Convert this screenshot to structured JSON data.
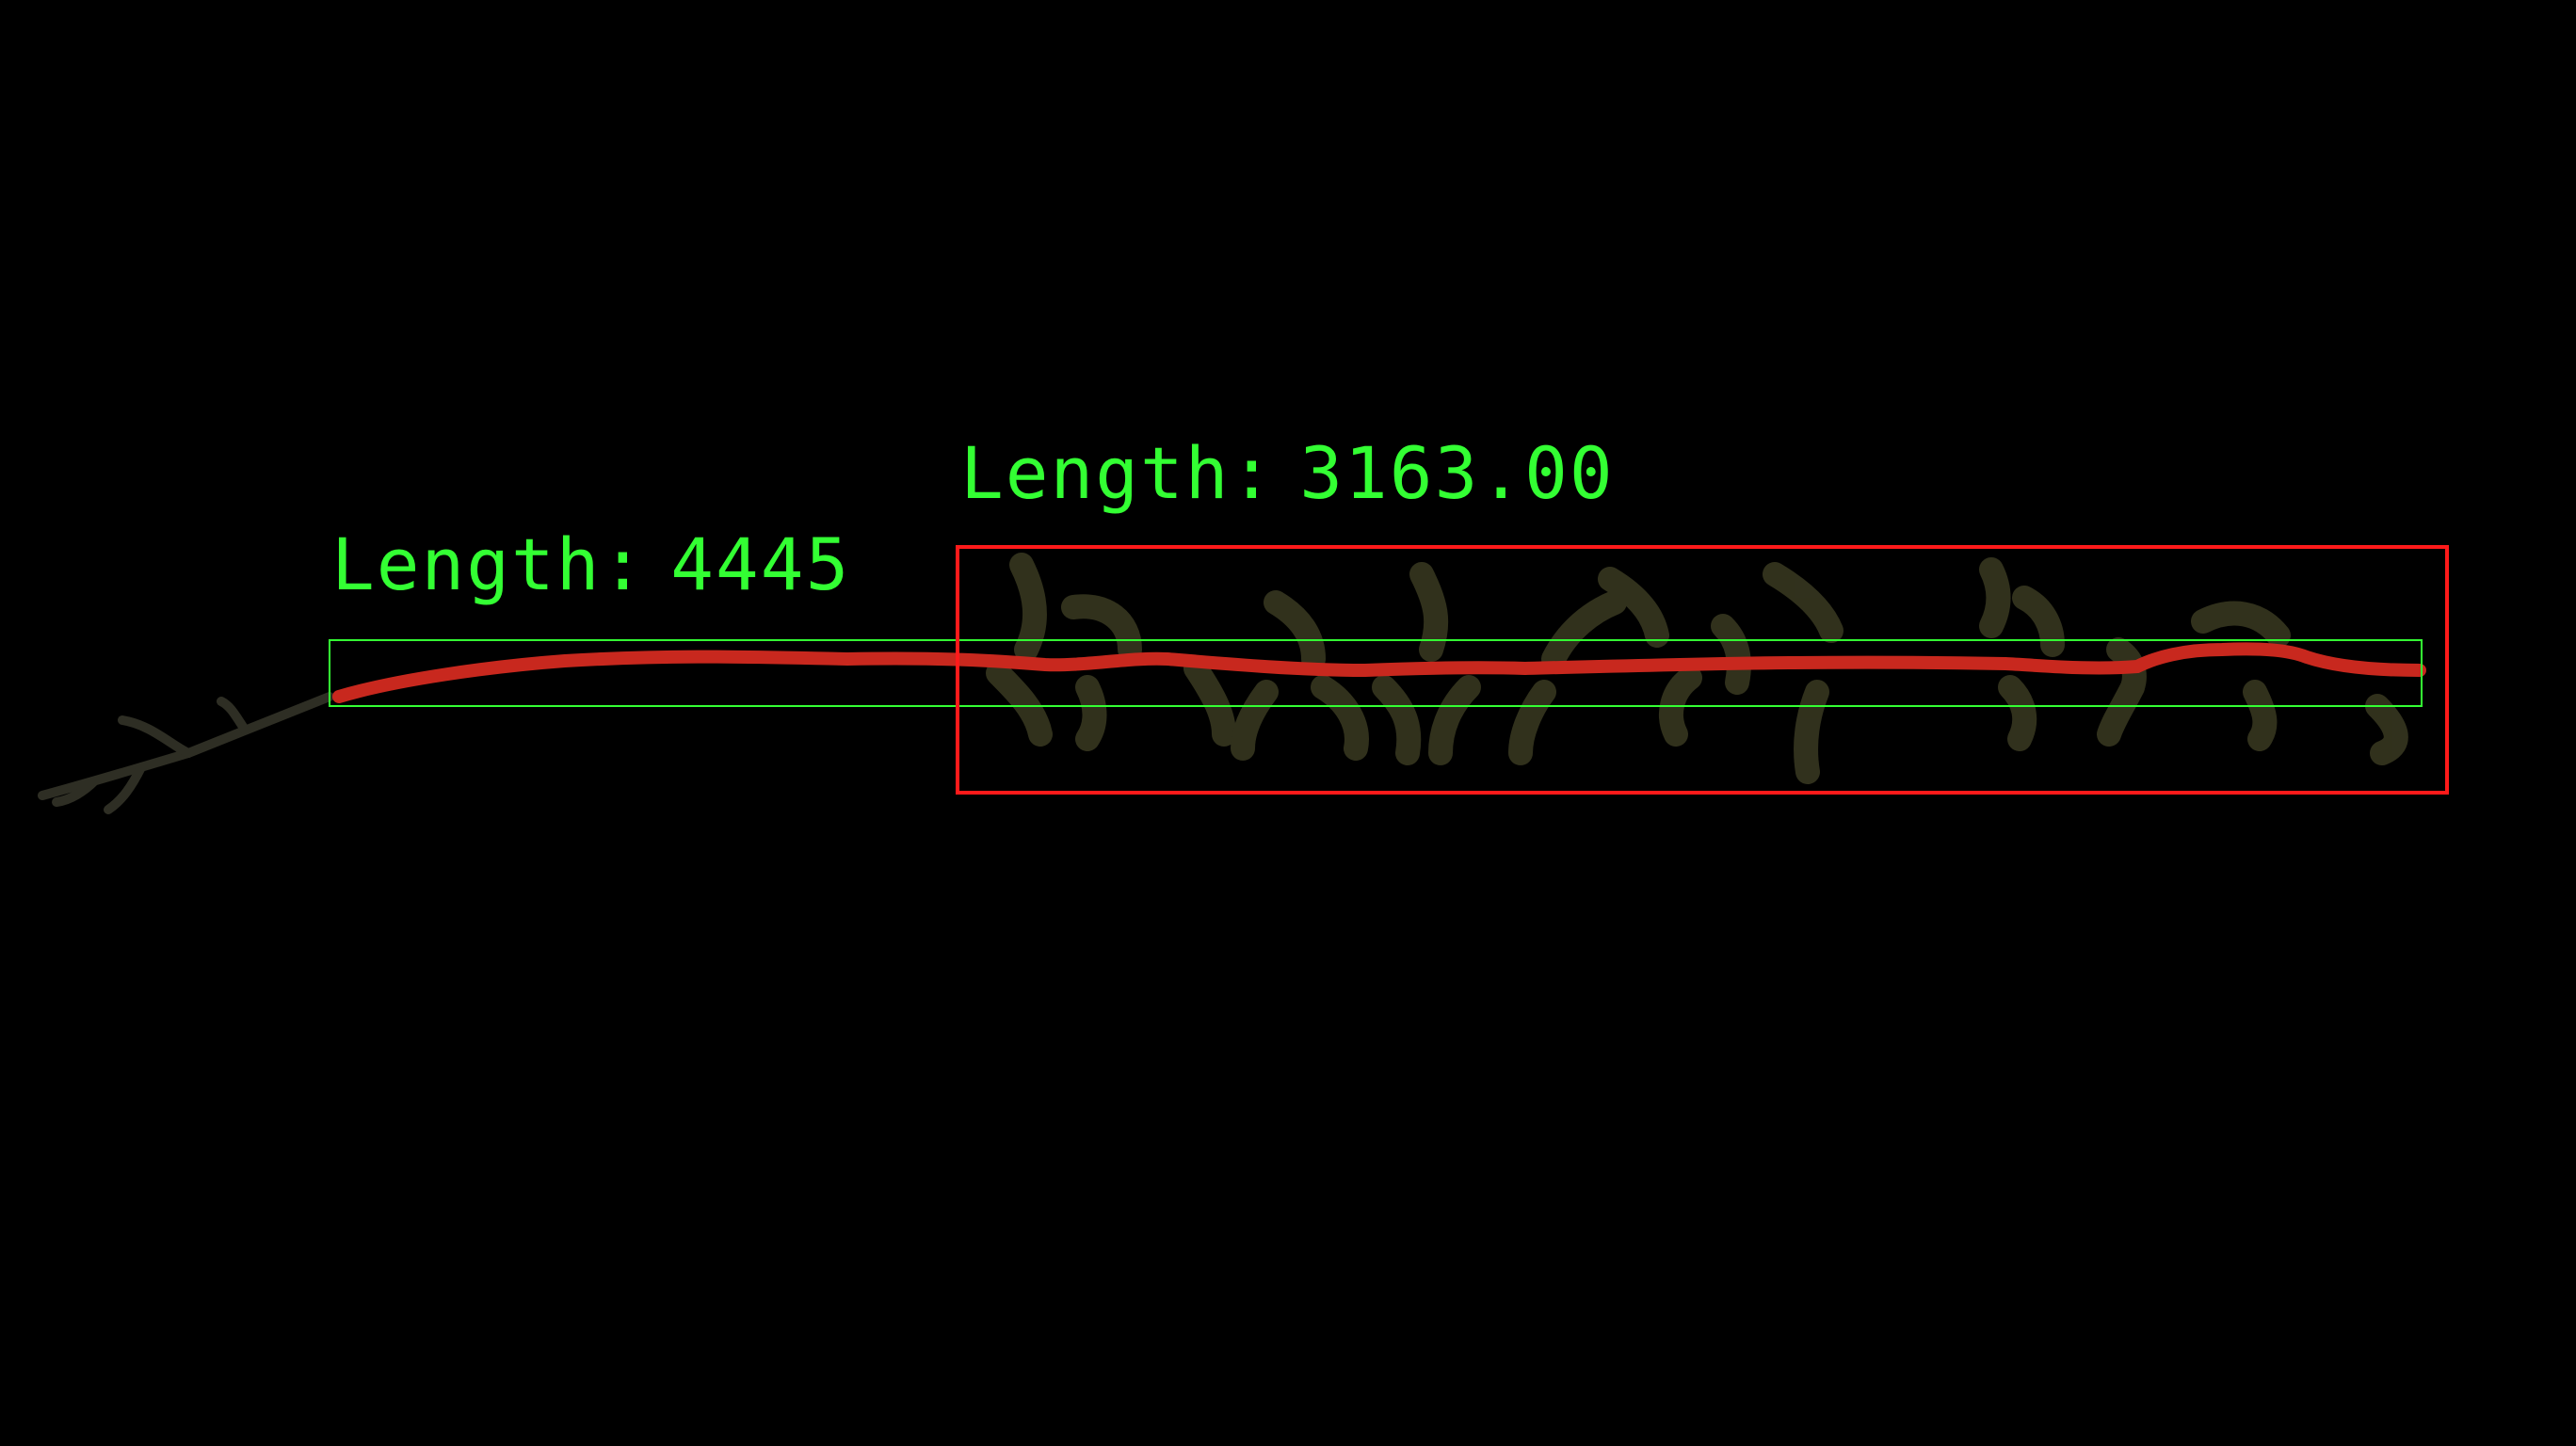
{
  "image": {
    "background_color": "#000000",
    "subject": "plant stem with seed pods",
    "stem_overlay_color": "#c8281e",
    "pod_color": "#3a3a22"
  },
  "annotations": {
    "stem_length": {
      "prefix": "Length:",
      "value": "4445",
      "color": "#33ff33",
      "box_color": "#33ff33"
    },
    "pod_region_length": {
      "prefix": "Length:",
      "value": "3163.00",
      "color": "#33ff33",
      "box_color": "#ff1a1a"
    }
  }
}
